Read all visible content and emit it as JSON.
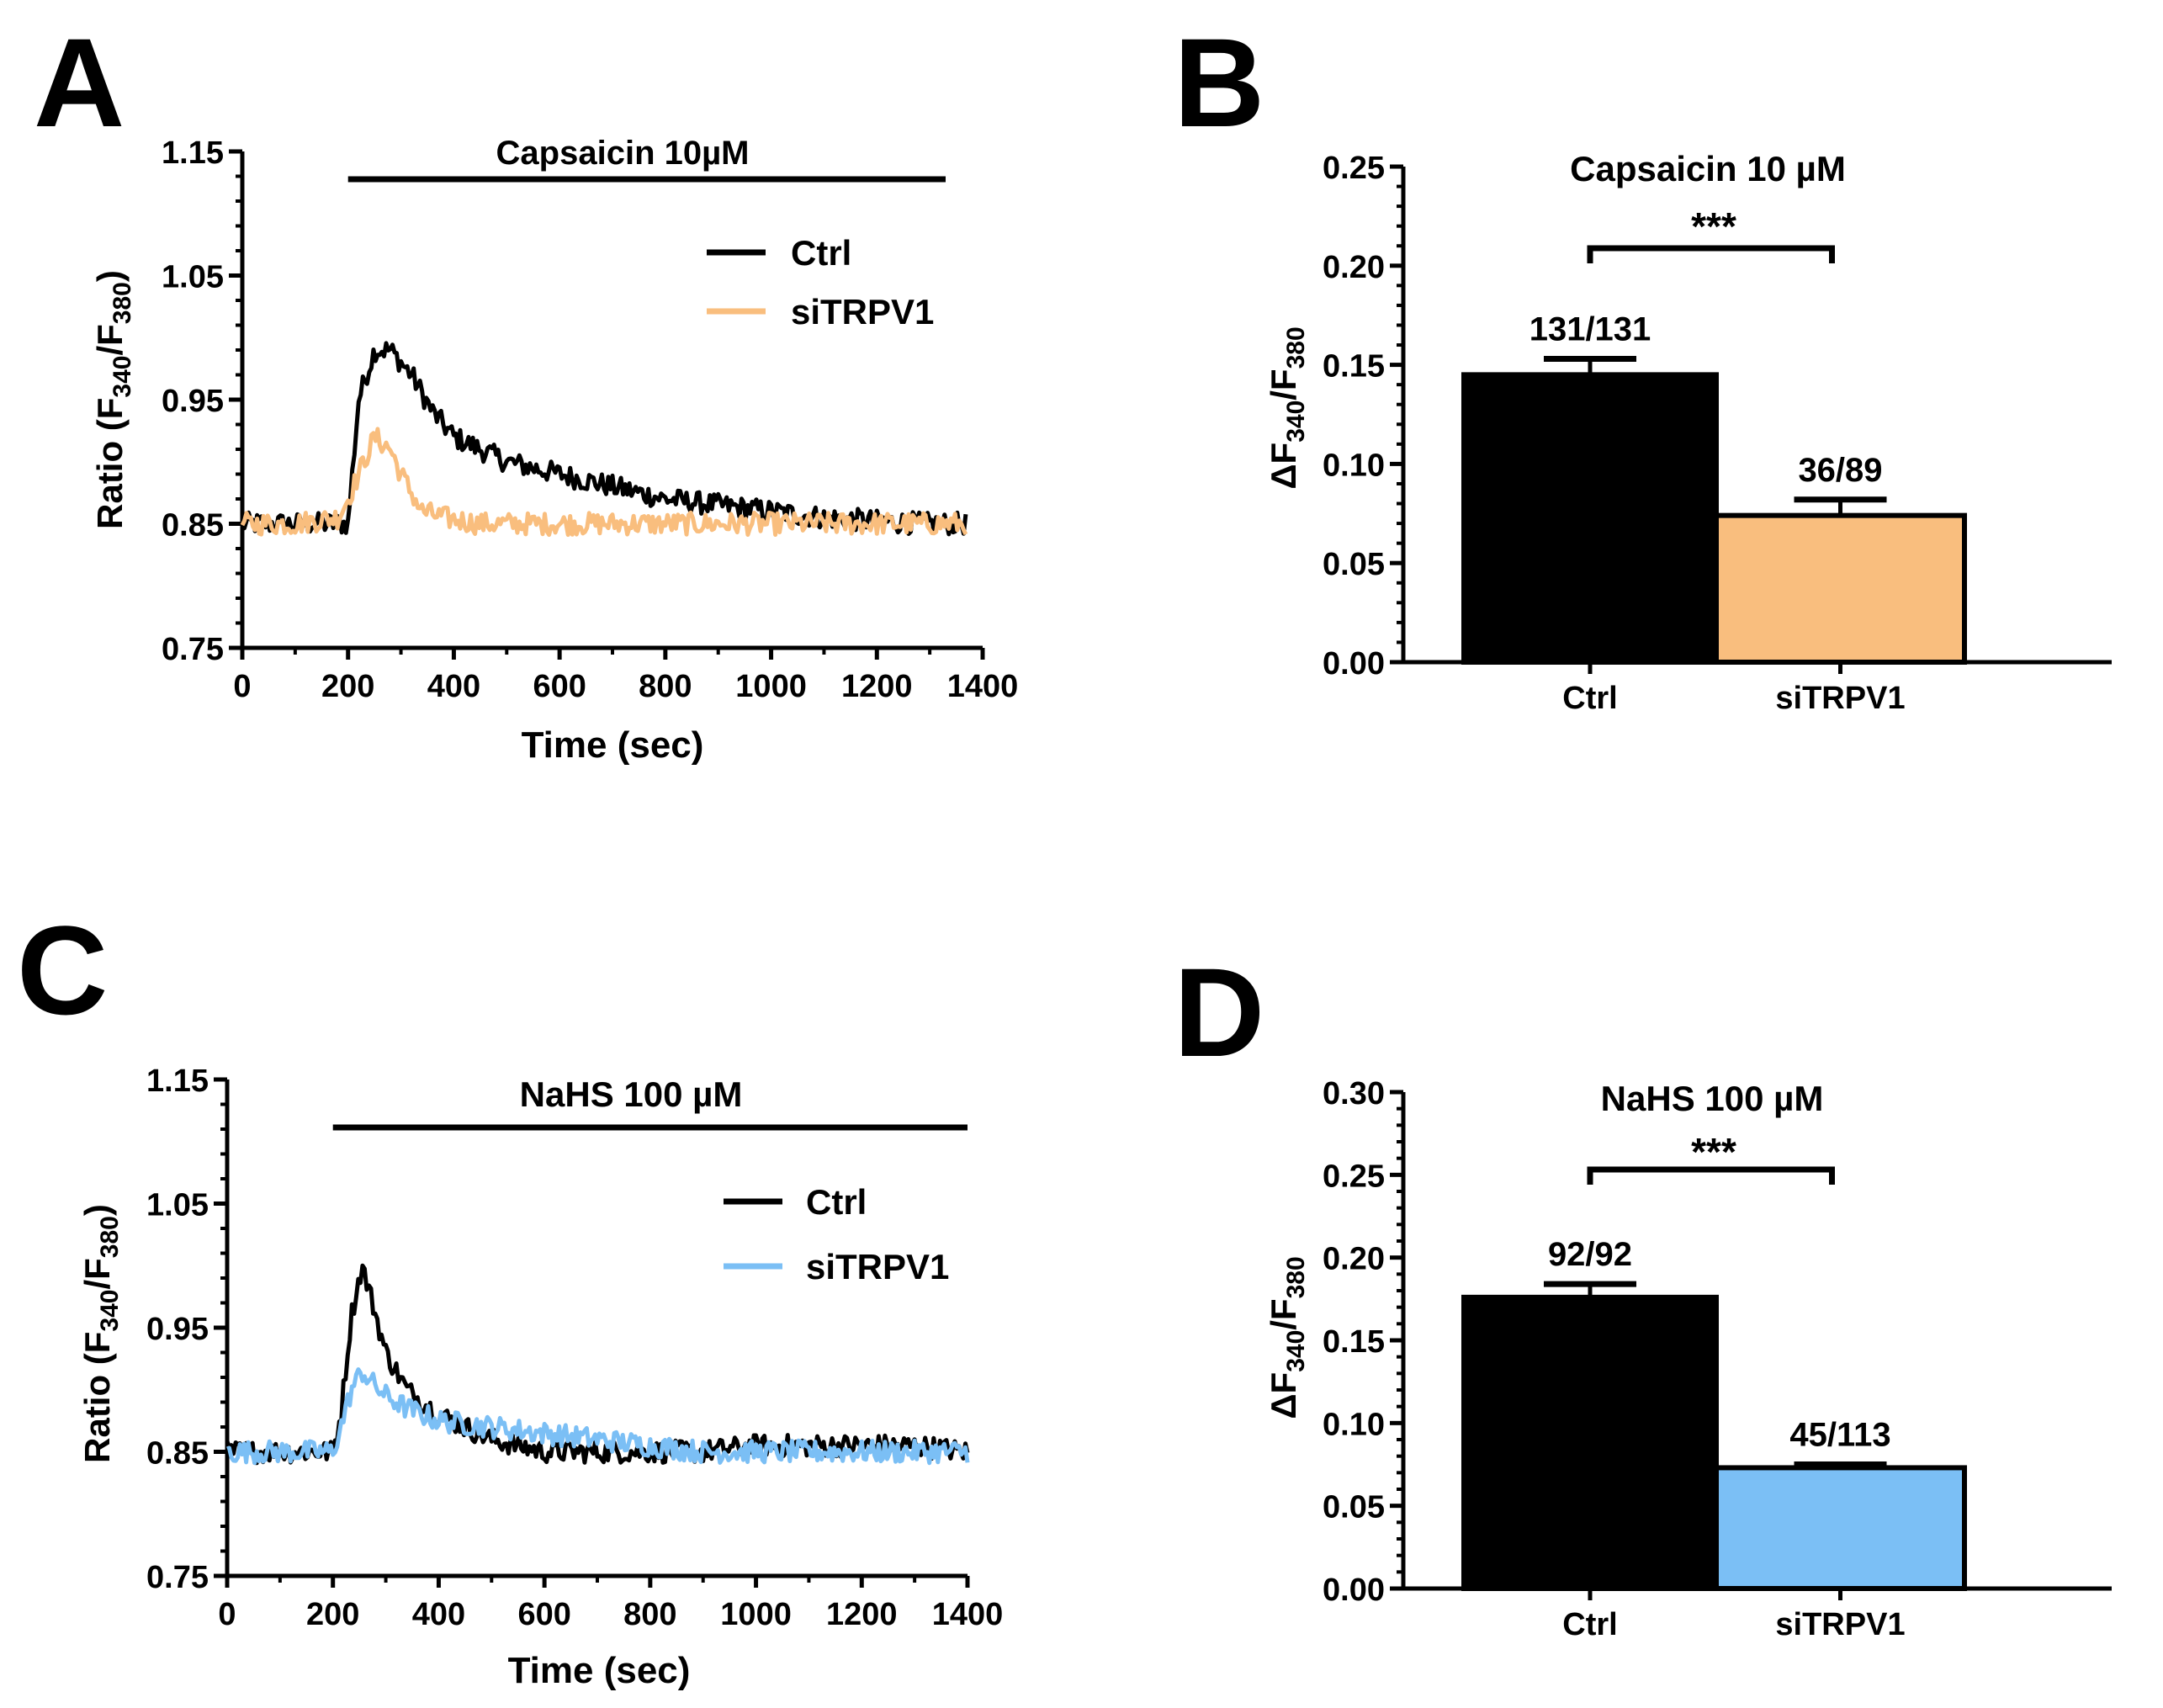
{
  "panels": [
    {
      "letter": "A",
      "type": "line",
      "title": "Capsaicin 10µM",
      "xlabel": "Time (sec)",
      "ylabel_main": "Ratio (F",
      "ylabel_sub1": "340",
      "ylabel_mid": "/F",
      "ylabel_sub2": "380",
      "ylabel_end": ")",
      "xlim": [
        0,
        1400
      ],
      "ylim": [
        0.75,
        1.15
      ],
      "xticks": [
        "0",
        "200",
        "400",
        "600",
        "800",
        "1000",
        "1200",
        "1400"
      ],
      "yticks": [
        "0.75",
        "0.85",
        "0.95",
        "1.05",
        "1.15"
      ],
      "stim_bar": [
        200,
        1330
      ],
      "legend": [
        {
          "name": "Ctrl",
          "color": "#000000"
        },
        {
          "name": "siTRPV1",
          "color": "#F9BE7E"
        }
      ]
    },
    {
      "letter": "B",
      "type": "bar",
      "title": "Capsaicin 10 µM",
      "ylabel_main": "ΔF",
      "ylabel_sub1": "340",
      "ylabel_mid": "/F",
      "ylabel_sub2": "380",
      "ylim": [
        0,
        0.25
      ],
      "yticks": [
        "0.00",
        "0.05",
        "0.10",
        "0.15",
        "0.20",
        "0.25"
      ],
      "categories": [
        "Ctrl",
        "siTRPV1"
      ],
      "values": [
        0.145,
        0.074
      ],
      "errors": [
        0.008,
        0.008
      ],
      "bar_colors": [
        "#000000",
        "#F9BE7E"
      ],
      "bar_labels": [
        "131/131",
        "36/89"
      ],
      "significance": "***"
    },
    {
      "letter": "C",
      "type": "line",
      "title": "NaHS 100 µM",
      "xlabel": "Time (sec)",
      "ylabel_main": "Ratio (F",
      "ylabel_sub1": "340",
      "ylabel_mid": "/F",
      "ylabel_sub2": "380",
      "ylabel_end": ")",
      "xlim": [
        0,
        1400
      ],
      "ylim": [
        0.75,
        1.15
      ],
      "xticks": [
        "0",
        "200",
        "400",
        "600",
        "800",
        "1000",
        "1200",
        "1400"
      ],
      "yticks": [
        "0.75",
        "0.85",
        "0.95",
        "1.05",
        "1.15"
      ],
      "stim_bar": [
        200,
        1400
      ],
      "legend": [
        {
          "name": "Ctrl",
          "color": "#000000"
        },
        {
          "name": "siTRPV1",
          "color": "#7BBFF5"
        }
      ]
    },
    {
      "letter": "D",
      "type": "bar",
      "title": "NaHS 100 µM",
      "ylabel_main": "ΔF",
      "ylabel_sub1": "340",
      "ylabel_mid": "/F",
      "ylabel_sub2": "380",
      "ylim": [
        0,
        0.3
      ],
      "yticks": [
        "0.00",
        "0.05",
        "0.10",
        "0.15",
        "0.20",
        "0.25",
        "0.30"
      ],
      "categories": [
        "Ctrl",
        "siTRPV1"
      ],
      "values": [
        0.176,
        0.073
      ],
      "errors": [
        0.008,
        0.002
      ],
      "bar_colors": [
        "#000000",
        "#7BBFF5"
      ],
      "bar_labels": [
        "92/92",
        "45/113"
      ],
      "significance": "***"
    }
  ],
  "chart_data": [
    {
      "panel": "A",
      "type": "line",
      "title": "Capsaicin 10µM",
      "xlabel": "Time (sec)",
      "ylabel": "Ratio (F340/F380)",
      "xlim": [
        0,
        1400
      ],
      "ylim": [
        0.75,
        1.15
      ],
      "series": [
        {
          "name": "Ctrl",
          "x": [
            0,
            100,
            180,
            200,
            220,
            250,
            280,
            320,
            360,
            400,
            450,
            500,
            600,
            700,
            800,
            900,
            1000,
            1100,
            1200,
            1300,
            1370
          ],
          "values": [
            0.85,
            0.85,
            0.85,
            0.85,
            0.95,
            0.99,
            0.99,
            0.97,
            0.94,
            0.92,
            0.91,
            0.9,
            0.89,
            0.88,
            0.87,
            0.865,
            0.86,
            0.855,
            0.852,
            0.85,
            0.85
          ]
        },
        {
          "name": "siTRPV1",
          "x": [
            0,
            100,
            180,
            200,
            220,
            250,
            280,
            300,
            340,
            380,
            450,
            600,
            800,
            1000,
            1200,
            1370
          ],
          "values": [
            0.85,
            0.85,
            0.855,
            0.87,
            0.89,
            0.92,
            0.91,
            0.89,
            0.86,
            0.855,
            0.85,
            0.85,
            0.85,
            0.85,
            0.85,
            0.85
          ]
        }
      ]
    },
    {
      "panel": "B",
      "type": "bar",
      "title": "Capsaicin 10 µM",
      "ylabel": "ΔF340/F380",
      "ylim": [
        0,
        0.25
      ],
      "categories": [
        "Ctrl",
        "siTRPV1"
      ],
      "values": [
        0.145,
        0.074
      ],
      "errors": [
        0.008,
        0.008
      ]
    },
    {
      "panel": "C",
      "type": "line",
      "title": "NaHS 100 µM",
      "xlabel": "Time (sec)",
      "ylabel": "Ratio (F340/F380)",
      "xlim": [
        0,
        1400
      ],
      "ylim": [
        0.75,
        1.15
      ],
      "series": [
        {
          "name": "Ctrl",
          "x": [
            0,
            100,
            200,
            215,
            235,
            255,
            275,
            300,
            340,
            400,
            500,
            600,
            700,
            800,
            900,
            1000,
            1100,
            1200,
            1300,
            1400
          ],
          "values": [
            0.85,
            0.85,
            0.85,
            0.88,
            0.96,
            1.0,
            0.97,
            0.93,
            0.9,
            0.88,
            0.86,
            0.85,
            0.85,
            0.85,
            0.85,
            0.855,
            0.855,
            0.855,
            0.855,
            0.85
          ]
        },
        {
          "name": "siTRPV1",
          "x": [
            0,
            100,
            200,
            215,
            235,
            255,
            275,
            300,
            340,
            400,
            500,
            600,
            700,
            800,
            900,
            1000,
            1100,
            1200,
            1300,
            1400
          ],
          "values": [
            0.85,
            0.85,
            0.85,
            0.87,
            0.9,
            0.915,
            0.905,
            0.895,
            0.885,
            0.875,
            0.87,
            0.865,
            0.86,
            0.855,
            0.85,
            0.85,
            0.85,
            0.85,
            0.85,
            0.85
          ]
        }
      ]
    },
    {
      "panel": "D",
      "type": "bar",
      "title": "NaHS 100 µM",
      "ylabel": "ΔF340/F380",
      "ylim": [
        0,
        0.3
      ],
      "categories": [
        "Ctrl",
        "siTRPV1"
      ],
      "values": [
        0.176,
        0.073
      ],
      "errors": [
        0.008,
        0.002
      ]
    }
  ]
}
